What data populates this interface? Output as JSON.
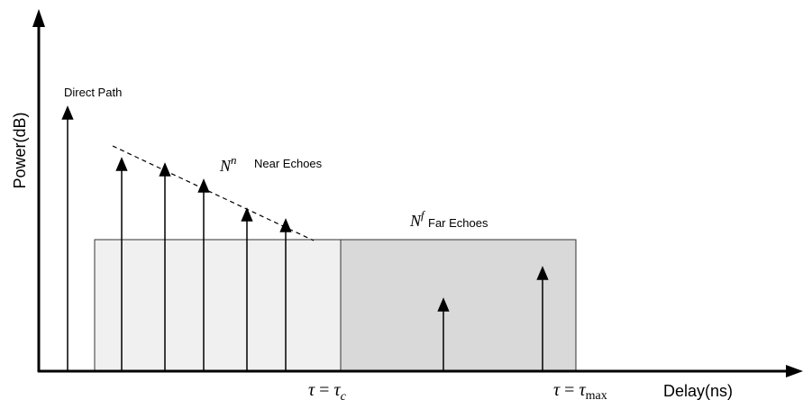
{
  "axes": {
    "y_label": "Power(dB)",
    "x_label": "Delay(ns)"
  },
  "labels": {
    "direct_path": "Direct Path",
    "near_symbol": "N",
    "near_superscript": "n",
    "near_text": "Near Echoes",
    "far_symbol": "N",
    "far_superscript": "f",
    "far_text": "Far Echoes"
  },
  "tick_labels": {
    "tau_c": {
      "lhs": "τ",
      "eq": " = ",
      "rhs": "τ",
      "sub": "c"
    },
    "tau_max": {
      "lhs": "τ",
      "eq": " = ",
      "rhs": "τ",
      "sub": "max"
    }
  },
  "regions": {
    "near_fill": "#f0f0f0",
    "far_fill": "#d9d9d9",
    "stroke": "#000000"
  }
}
